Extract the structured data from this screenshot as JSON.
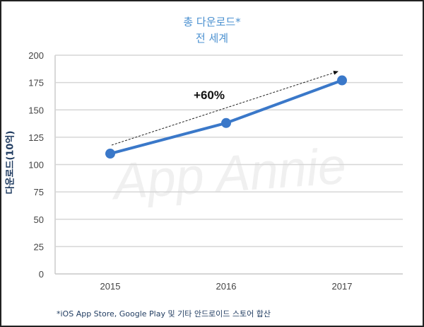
{
  "chart_data": {
    "type": "line",
    "title": "총 다운로드*",
    "subtitle": "전 세계",
    "xlabel": "",
    "ylabel": "다운로드(10억)",
    "categories": [
      "2015",
      "2016",
      "2017"
    ],
    "series": [
      {
        "name": "총 다운로드",
        "values": [
          110,
          138,
          177
        ],
        "color": "#3a78c9"
      }
    ],
    "ylim": [
      0,
      200
    ],
    "yticks": [
      0,
      25,
      50,
      75,
      100,
      125,
      150,
      175,
      200
    ],
    "grid": true,
    "annotation": "+60%",
    "watermark": "App Annie",
    "footnote": "*iOS App Store, Google Play 및 기타 안드로이드 스토어 합산"
  }
}
